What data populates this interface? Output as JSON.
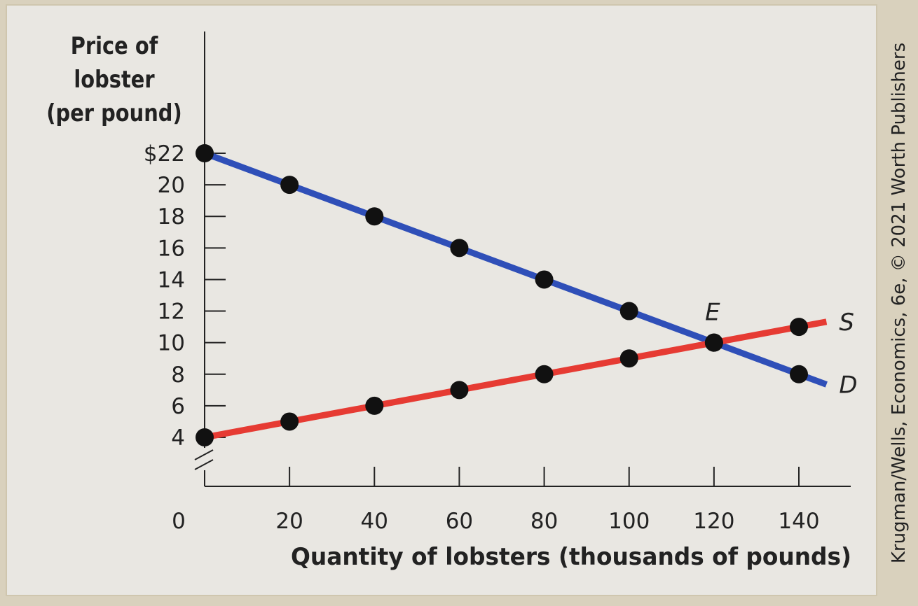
{
  "chart_data": {
    "type": "line",
    "ylabel_lines": [
      "Price of",
      "lobster",
      "(per pound)"
    ],
    "xlabel": "Quantity of lobsters (thousands of pounds)",
    "origin_label": "0",
    "x_ticks": [
      20,
      40,
      60,
      80,
      100,
      120,
      140
    ],
    "x_tick_labels": [
      "20",
      "40",
      "60",
      "80",
      "100",
      "120",
      "140"
    ],
    "y_ticks": [
      4,
      6,
      8,
      10,
      12,
      14,
      16,
      18,
      20,
      22
    ],
    "y_tick_labels": [
      "4",
      "6",
      "8",
      "10",
      "12",
      "14",
      "16",
      "18",
      "20",
      "$22"
    ],
    "xlim": [
      0,
      140
    ],
    "ylim": [
      4,
      22
    ],
    "axis_break": true,
    "series": [
      {
        "name": "D",
        "color": "#2f4fb8",
        "x": [
          0,
          20,
          40,
          60,
          80,
          100,
          120,
          140
        ],
        "y": [
          22,
          20,
          18,
          16,
          14,
          12,
          10,
          8
        ]
      },
      {
        "name": "S",
        "color": "#e63b33",
        "x": [
          0,
          20,
          40,
          60,
          80,
          100,
          120,
          140
        ],
        "y": [
          4,
          5,
          6,
          7,
          8,
          9,
          10,
          11
        ]
      }
    ],
    "annotations": [
      {
        "text": "E",
        "x": 120,
        "y": 10
      }
    ],
    "grid": false,
    "legend": "none"
  },
  "credit": {
    "text": "Krugman/Wells, Economics, 6e, © 2021 Worth Publishers"
  }
}
